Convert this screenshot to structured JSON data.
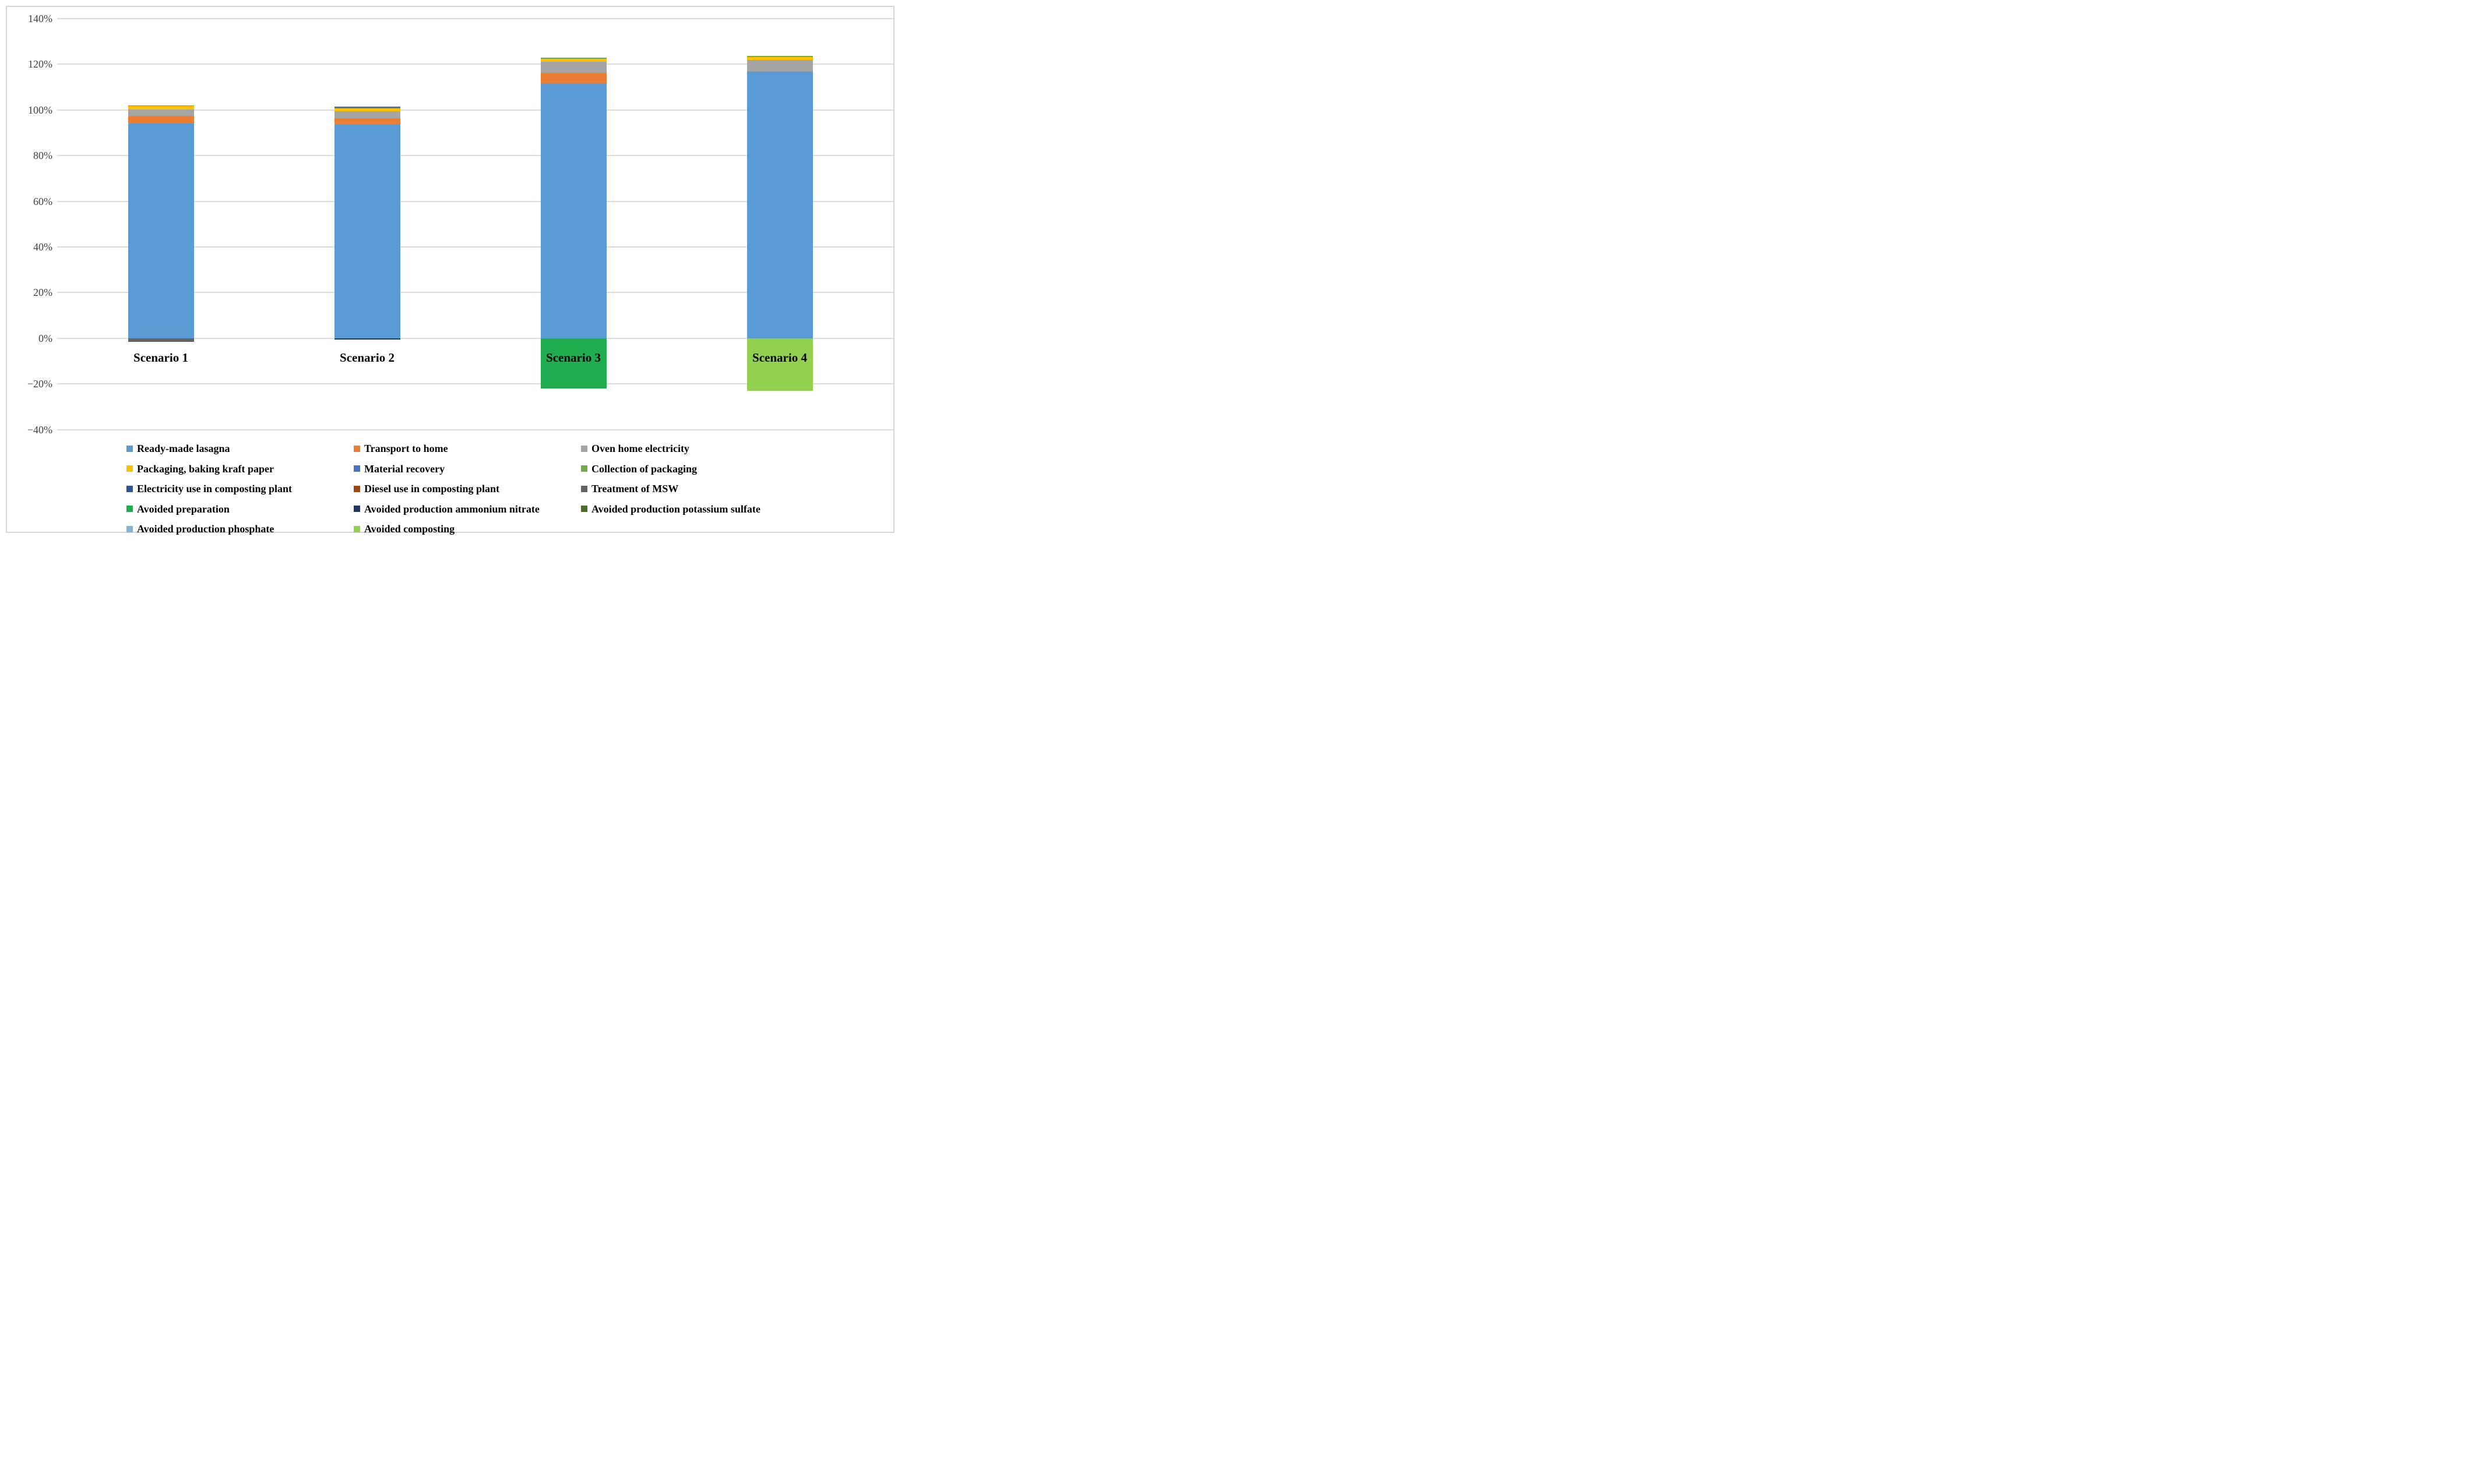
{
  "style": {
    "background": "#ffffff",
    "frame_border": "#d6d6d6",
    "gridline_color": "#dcdcdc",
    "tick_text_color": "#404040",
    "label_text_color": "#000000"
  },
  "chart_data": {
    "type": "stacked-bar",
    "title": "",
    "xlabel": "",
    "ylabel": "",
    "grid": true,
    "legend_position": "bottom",
    "legend_columns": 3,
    "categories": [
      "Scenario 1",
      "Scenario 2",
      "Scenario 3",
      "Scenario 4"
    ],
    "y_axis": {
      "min": -40,
      "max": 140,
      "step": 20,
      "tick_labels": [
        "140%",
        "120%",
        "100%",
        "80%",
        "60%",
        "40%",
        "20%",
        "0%",
        "−20%",
        "−40%"
      ]
    },
    "series": [
      {
        "name": "Ready-made lasagna",
        "color": "#5B9BD5",
        "values": [
          94.2,
          93.6,
          111.8,
          116.7
        ]
      },
      {
        "name": "Transport to home",
        "color": "#ED7D31",
        "values": [
          3.2,
          2.9,
          4.4,
          0
        ]
      },
      {
        "name": "Oven home electricity",
        "color": "#A5A5A5",
        "values": [
          2.9,
          3.0,
          4.8,
          5.1
        ]
      },
      {
        "name": "Packaging, baking kraft paper",
        "color": "#FFC000",
        "values": [
          1.4,
          1.1,
          1.4,
          1.4
        ]
      },
      {
        "name": "Material recovery",
        "color": "#4472C4",
        "values": [
          0,
          1.0,
          0,
          0
        ]
      },
      {
        "name": "Collection of packaging",
        "color": "#70AD47",
        "values": [
          0.4,
          0,
          0.5,
          0.6
        ]
      },
      {
        "name": "Electricity use in composting plant",
        "color": "#2F5597",
        "values": [
          0,
          0,
          0,
          0
        ]
      },
      {
        "name": "Diesel use in composting plant",
        "color": "#9E480E",
        "values": [
          0,
          0,
          0,
          0
        ]
      },
      {
        "name": "Treatment of MSW",
        "color": "#636363",
        "values": [
          -1.5,
          0,
          0,
          0
        ]
      },
      {
        "name": "Avoided preparation",
        "color": "#1FAD4F",
        "values": [
          0,
          0,
          -22.1,
          0
        ]
      },
      {
        "name": "Avoided production ammonium nitrate",
        "color": "#203864",
        "values": [
          0,
          -0.5,
          0,
          0
        ]
      },
      {
        "name": "Avoided production potassium sulfate",
        "color": "#4A6D28",
        "values": [
          0,
          0,
          0,
          0
        ]
      },
      {
        "name": "Avoided production phosphate",
        "color": "#85B1DD",
        "values": [
          0,
          0,
          0,
          0
        ]
      },
      {
        "name": "Avoided composting",
        "color": "#92D050",
        "values": [
          0,
          0,
          0,
          -23.0
        ]
      }
    ]
  }
}
